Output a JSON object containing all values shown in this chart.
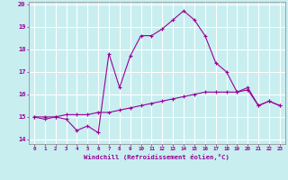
{
  "xlabel": "Windchill (Refroidissement éolien,°C)",
  "background_color": "#c8eef0",
  "grid_color": "#ffffff",
  "line_color": "#990099",
  "hours": [
    0,
    1,
    2,
    3,
    4,
    5,
    6,
    7,
    8,
    9,
    10,
    11,
    12,
    13,
    14,
    15,
    16,
    17,
    18,
    19,
    20,
    21,
    22,
    23
  ],
  "temp_line": [
    15.0,
    14.9,
    15.0,
    14.9,
    14.4,
    14.6,
    14.3,
    17.8,
    16.3,
    17.7,
    18.6,
    18.6,
    18.9,
    19.3,
    19.7,
    19.3,
    18.6,
    17.4,
    17.0,
    16.1,
    16.3,
    15.5,
    15.7,
    15.5
  ],
  "wind_line": [
    15.0,
    15.0,
    15.0,
    15.1,
    15.1,
    15.1,
    15.2,
    15.2,
    15.3,
    15.4,
    15.5,
    15.6,
    15.7,
    15.8,
    15.9,
    16.0,
    16.1,
    16.1,
    16.1,
    16.1,
    16.2,
    15.5,
    15.7,
    15.5
  ],
  "ylim": [
    13.8,
    20.1
  ],
  "yticks": [
    14,
    15,
    16,
    17,
    18,
    19,
    20
  ],
  "xlim": [
    -0.5,
    23.5
  ]
}
